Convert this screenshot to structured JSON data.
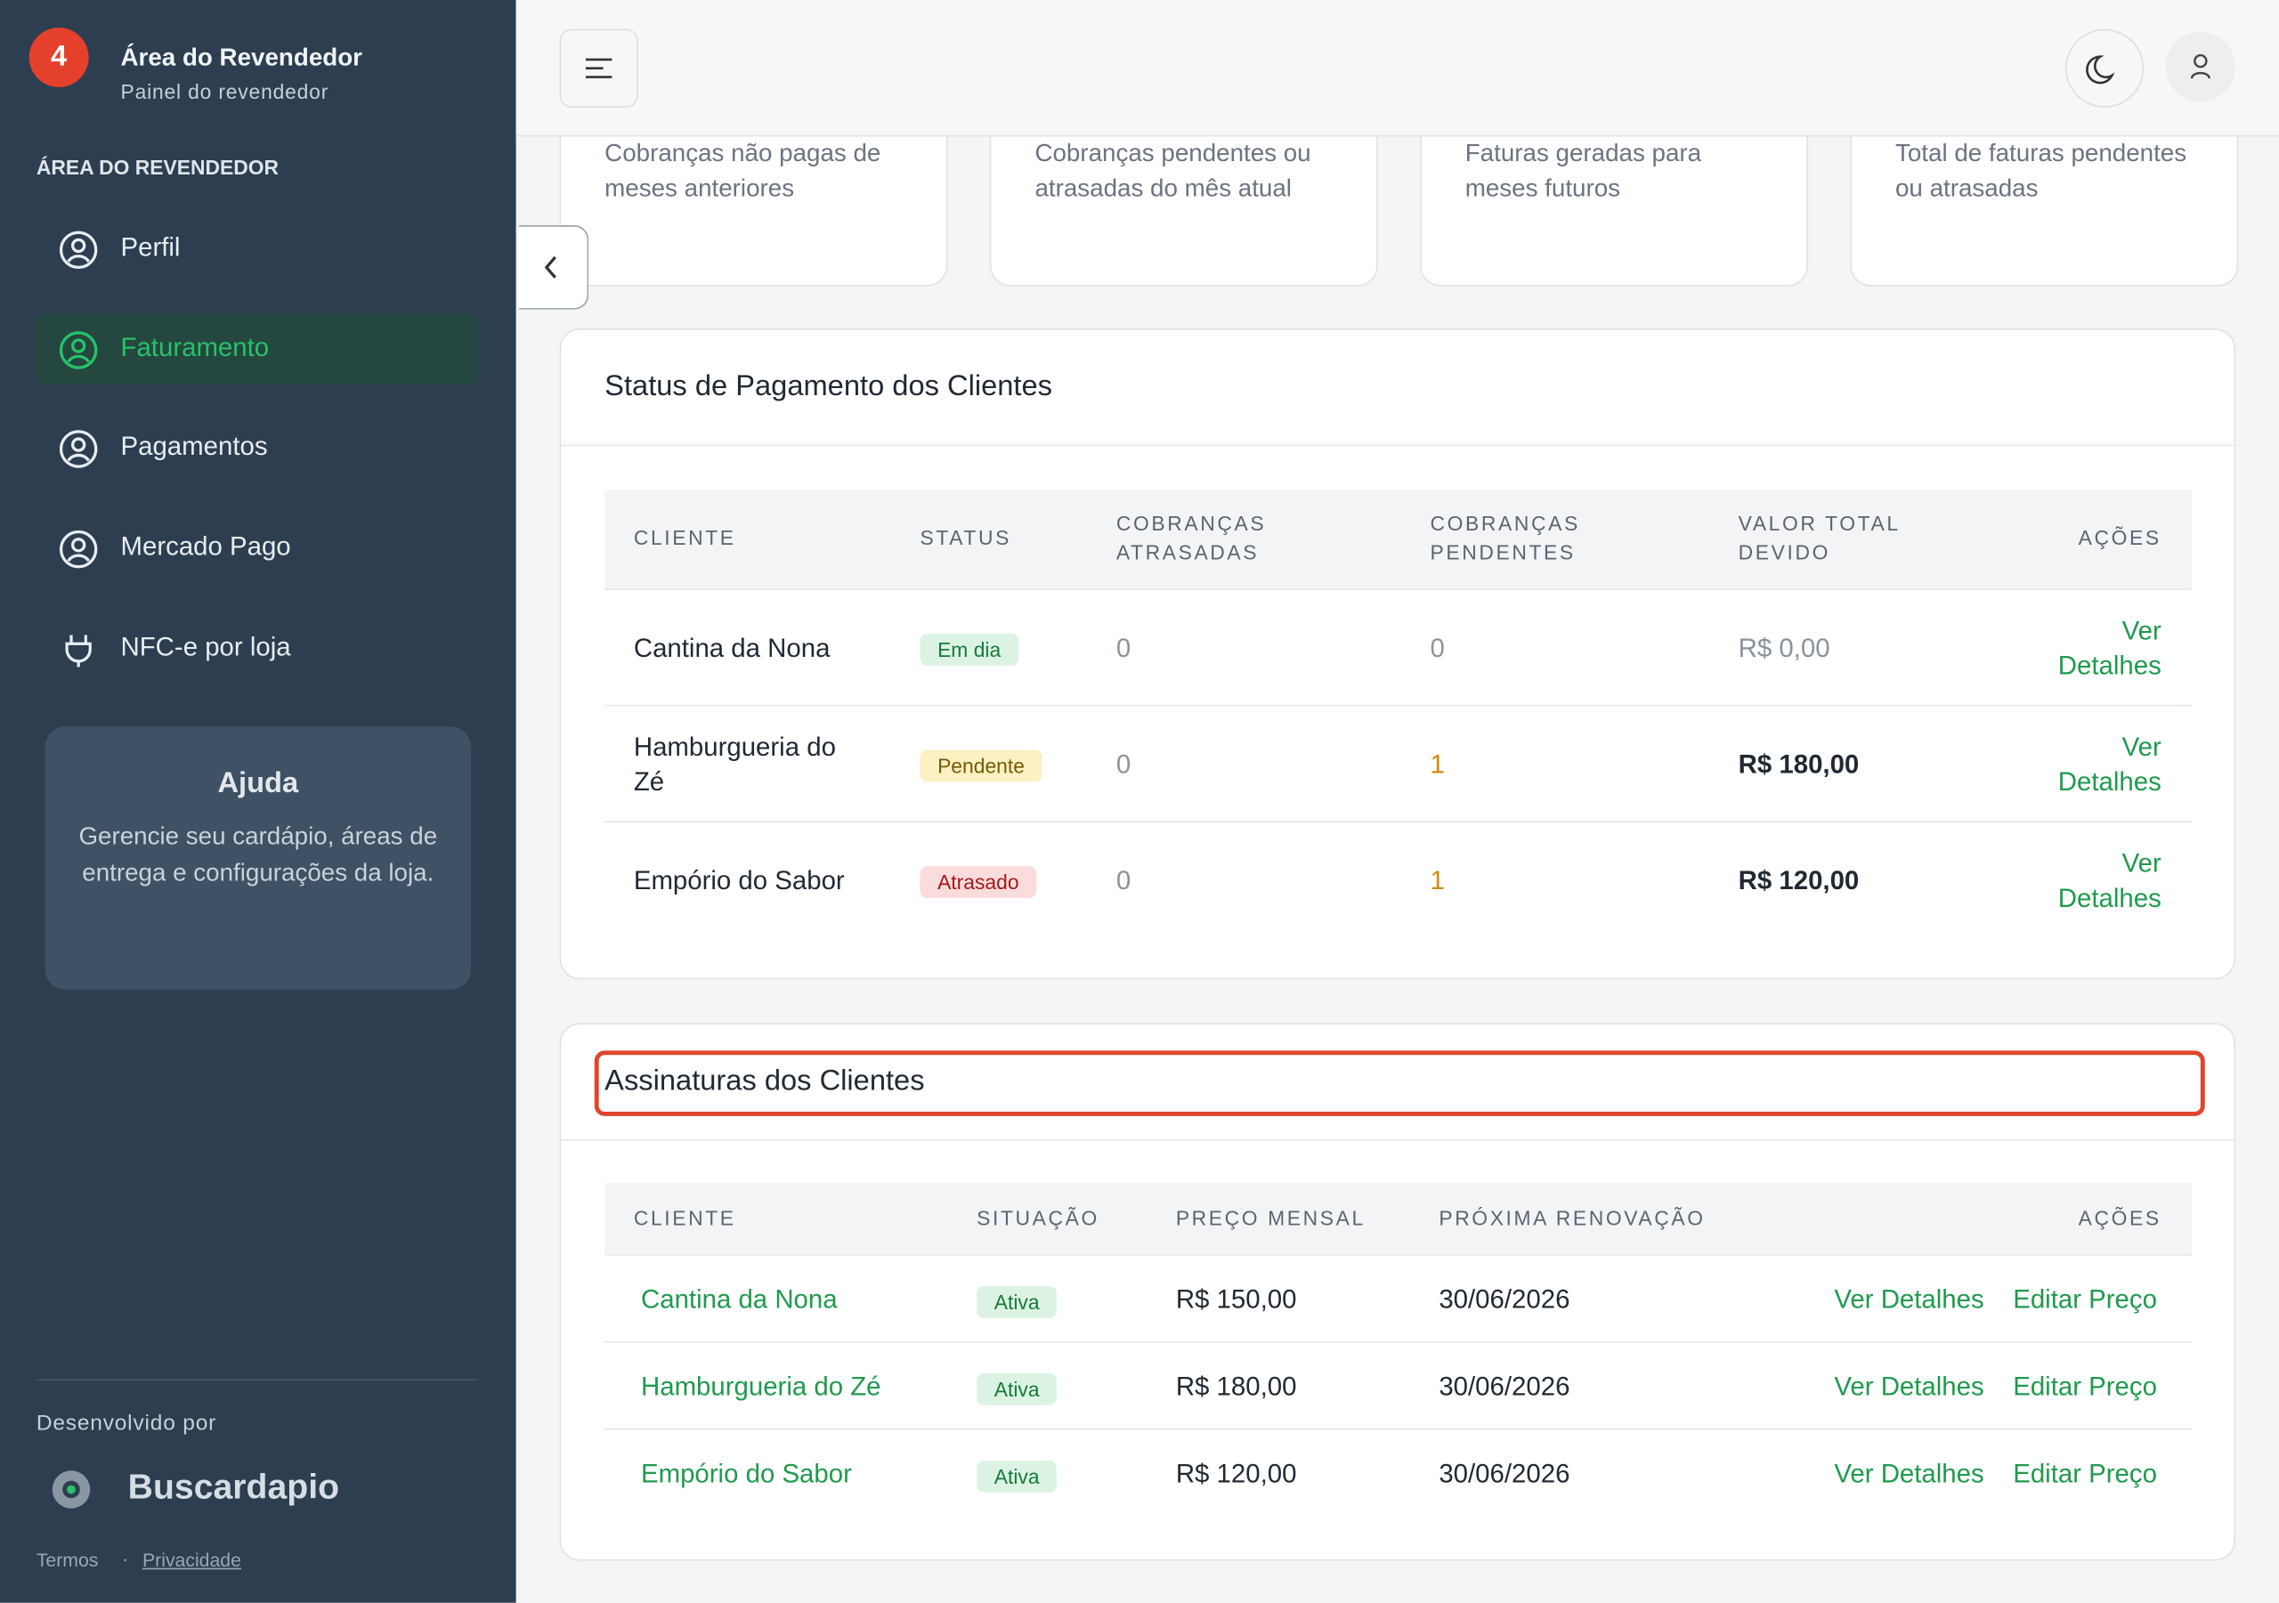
{
  "sidebar": {
    "badge": "4",
    "title": "Área do Revendedor",
    "subtitle": "Painel do revendedor",
    "section": "ÁREA DO REVENDEDOR",
    "nav": [
      "Perfil",
      "Faturamento",
      "Pagamentos",
      "Mercado Pago",
      "NFC-e por loja"
    ],
    "help": {
      "title": "Ajuda",
      "text": "Gerencie seu cardápio, áreas de entrega e configurações da loja."
    },
    "footer": {
      "developed_by": "Desenvolvido por",
      "brand": "Buscardapio",
      "links": [
        "Termos",
        "Privacidade"
      ]
    }
  },
  "summary_cards": [
    "Cobranças não pagas de meses anteriores",
    "Cobranças pendentes ou atrasadas do mês atual",
    "Faturas geradas para meses futuros",
    "Total de faturas pendentes ou atrasadas"
  ],
  "payment_status": {
    "title": "Status de Pagamento dos Clientes",
    "headers": [
      "CLIENTE",
      "STATUS",
      "COBRANÇAS ATRASADAS",
      "COBRANÇAS PENDENTES",
      "VALOR TOTAL DEVIDO",
      "AÇÕES"
    ],
    "rows": [
      [
        "Cantina da Nona",
        "Em dia",
        "0",
        "0",
        "R$ 0,00",
        "Ver Detalhes"
      ],
      [
        "Hamburgueria do Zé",
        "Pendente",
        "0",
        "1",
        "R$ 180,00",
        "Ver Detalhes"
      ],
      [
        "Empório do Sabor",
        "Atrasado",
        "0",
        "1",
        "R$ 120,00",
        "Ver Detalhes"
      ]
    ]
  },
  "subscriptions": {
    "title": "Assinaturas dos Clientes",
    "headers": [
      "CLIENTE",
      "SITUAÇÃO",
      "PREÇO MENSAL",
      "PRÓXIMA RENOVAÇÃO",
      "AÇÕES"
    ],
    "rows": [
      [
        "Cantina da Nona",
        "Ativa",
        "R$ 150,00",
        "30/06/2026",
        "Ver Detalhes",
        "Editar Preço"
      ],
      [
        "Hamburgueria do Zé",
        "Ativa",
        "R$ 180,00",
        "30/06/2026",
        "Ver Detalhes",
        "Editar Preço"
      ],
      [
        "Empório do Sabor",
        "Ativa",
        "R$ 120,00",
        "30/06/2026",
        "Ver Detalhes",
        "Editar Preço"
      ]
    ]
  }
}
